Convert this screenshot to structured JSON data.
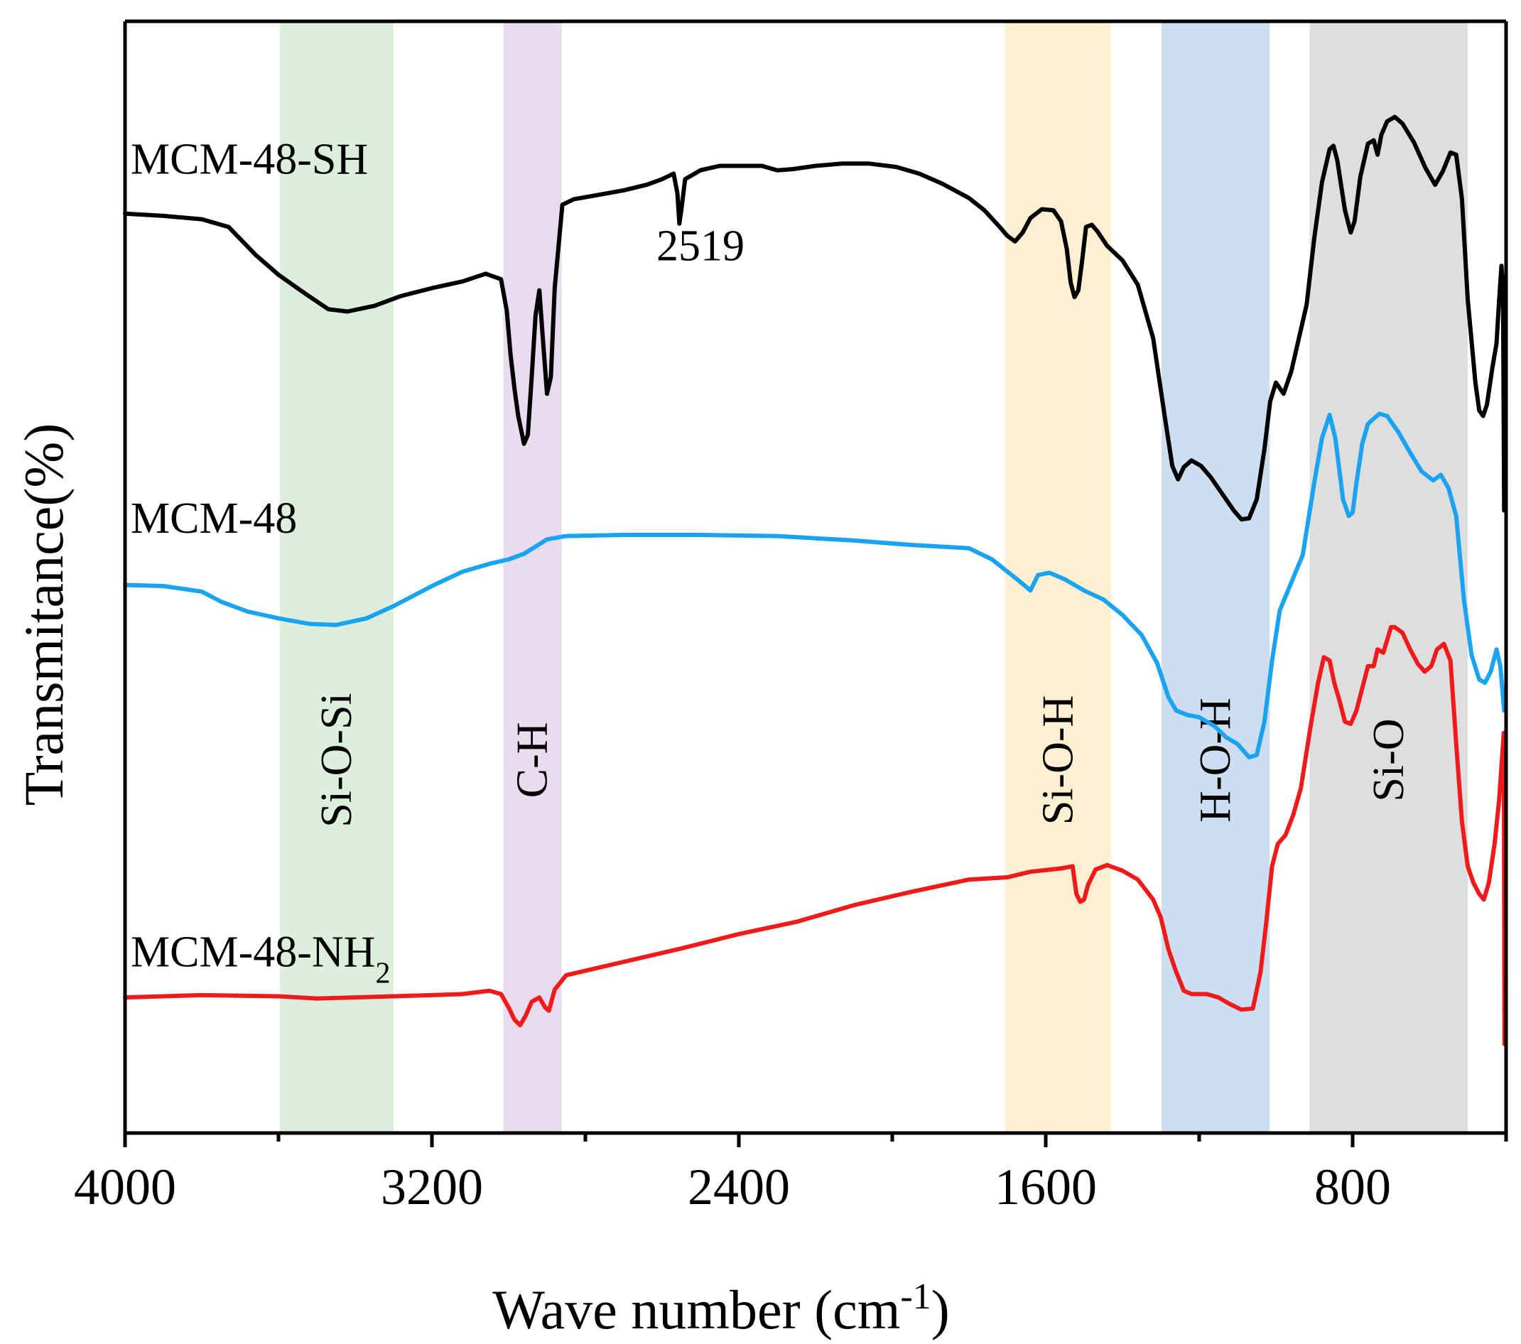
{
  "chart_data": {
    "type": "line",
    "xlabel": "Wave number (cm",
    "xlabel_sup": "-1",
    "xlabel_end": ")",
    "ylabel": "Transmitance(%)",
    "xlim": [
      4000,
      400
    ],
    "x_reversed": true,
    "x_major_ticks": [
      4000,
      3200,
      2400,
      1600,
      800
    ],
    "x_tick_labels": [
      "4000",
      "3200",
      "2400",
      "1600",
      "800"
    ],
    "x_minor_ticks": [
      3600,
      2800,
      2000,
      1200,
      400
    ],
    "ylim": [
      0,
      100
    ],
    "y_ticks_shown": false,
    "grid": false,
    "bands": [
      {
        "label": "Si-O-Si",
        "from": 3596,
        "to": 3300,
        "color": "#dcefdc"
      },
      {
        "label": "C-H",
        "from": 3014,
        "to": 2862,
        "color": "#eadcef"
      },
      {
        "label": "Si-O-H",
        "from": 1706,
        "to": 1430,
        "color": "#fdefd2"
      },
      {
        "label": "H-O-H",
        "from": 1298,
        "to": 1016,
        "color": "#cddef0"
      },
      {
        "label": "Si-O",
        "from": 912,
        "to": 500,
        "color": "#dedede"
      }
    ],
    "annotations": [
      {
        "text": "2519",
        "x": 2500,
        "y": 78.5
      }
    ],
    "series": [
      {
        "name": "MCM-48-SH",
        "label_main": "MCM-48-SH",
        "label_sub": "",
        "color": "#000000",
        "label_x": 4000,
        "label_y": 86.3,
        "points": [
          [
            4000,
            82.7
          ],
          [
            3900,
            82.5
          ],
          [
            3800,
            82.2
          ],
          [
            3730,
            81.5
          ],
          [
            3660,
            79.0
          ],
          [
            3600,
            77.2
          ],
          [
            3530,
            75.5
          ],
          [
            3470,
            74.1
          ],
          [
            3420,
            73.9
          ],
          [
            3350,
            74.4
          ],
          [
            3280,
            75.3
          ],
          [
            3200,
            76.0
          ],
          [
            3120,
            76.6
          ],
          [
            3060,
            77.3
          ],
          [
            3020,
            76.8
          ],
          [
            3005,
            74.0
          ],
          [
            2995,
            70.0
          ],
          [
            2985,
            67.0
          ],
          [
            2975,
            64.5
          ],
          [
            2960,
            62.0
          ],
          [
            2950,
            62.8
          ],
          [
            2940,
            68.0
          ],
          [
            2930,
            73.5
          ],
          [
            2920,
            75.8
          ],
          [
            2912,
            72.0
          ],
          [
            2900,
            66.5
          ],
          [
            2890,
            68.0
          ],
          [
            2880,
            76.0
          ],
          [
            2860,
            83.5
          ],
          [
            2830,
            84.0
          ],
          [
            2780,
            84.3
          ],
          [
            2700,
            84.8
          ],
          [
            2640,
            85.3
          ],
          [
            2600,
            85.8
          ],
          [
            2570,
            86.3
          ],
          [
            2560,
            84.5
          ],
          [
            2555,
            81.8
          ],
          [
            2550,
            83.0
          ],
          [
            2540,
            85.8
          ],
          [
            2500,
            86.6
          ],
          [
            2450,
            87.0
          ],
          [
            2400,
            87.0
          ],
          [
            2340,
            87.0
          ],
          [
            2300,
            86.6
          ],
          [
            2260,
            86.7
          ],
          [
            2200,
            87.0
          ],
          [
            2130,
            87.2
          ],
          [
            2060,
            87.2
          ],
          [
            1990,
            86.9
          ],
          [
            1930,
            86.3
          ],
          [
            1870,
            85.4
          ],
          [
            1800,
            84.1
          ],
          [
            1760,
            83.0
          ],
          [
            1720,
            81.5
          ],
          [
            1700,
            80.7
          ],
          [
            1680,
            80.2
          ],
          [
            1660,
            81.0
          ],
          [
            1640,
            82.3
          ],
          [
            1610,
            83.1
          ],
          [
            1580,
            83.0
          ],
          [
            1560,
            82.0
          ],
          [
            1545,
            79.5
          ],
          [
            1535,
            76.5
          ],
          [
            1525,
            75.2
          ],
          [
            1515,
            75.8
          ],
          [
            1505,
            78.5
          ],
          [
            1495,
            81.5
          ],
          [
            1480,
            81.7
          ],
          [
            1465,
            81.1
          ],
          [
            1440,
            79.8
          ],
          [
            1400,
            78.5
          ],
          [
            1360,
            76.3
          ],
          [
            1320,
            71.5
          ],
          [
            1290,
            64.5
          ],
          [
            1270,
            60.0
          ],
          [
            1255,
            58.8
          ],
          [
            1240,
            59.9
          ],
          [
            1220,
            60.5
          ],
          [
            1195,
            60.0
          ],
          [
            1170,
            59.0
          ],
          [
            1140,
            57.5
          ],
          [
            1110,
            56.0
          ],
          [
            1090,
            55.2
          ],
          [
            1070,
            55.3
          ],
          [
            1050,
            57.0
          ],
          [
            1030,
            61.5
          ],
          [
            1015,
            65.8
          ],
          [
            1000,
            67.5
          ],
          [
            980,
            66.5
          ],
          [
            960,
            68.5
          ],
          [
            940,
            71.5
          ],
          [
            920,
            74.5
          ],
          [
            900,
            80.5
          ],
          [
            880,
            85.5
          ],
          [
            860,
            88.5
          ],
          [
            850,
            88.8
          ],
          [
            840,
            87.5
          ],
          [
            820,
            83.0
          ],
          [
            805,
            81.0
          ],
          [
            795,
            82.0
          ],
          [
            780,
            86.0
          ],
          [
            760,
            89.0
          ],
          [
            745,
            89.3
          ],
          [
            735,
            88.0
          ],
          [
            725,
            89.8
          ],
          [
            710,
            91.0
          ],
          [
            690,
            91.4
          ],
          [
            670,
            90.8
          ],
          [
            640,
            89.1
          ],
          [
            610,
            86.8
          ],
          [
            585,
            85.3
          ],
          [
            565,
            86.5
          ],
          [
            545,
            88.2
          ],
          [
            530,
            88.0
          ],
          [
            515,
            84.0
          ],
          [
            500,
            75.0
          ],
          [
            480,
            67.5
          ],
          [
            470,
            65.0
          ],
          [
            460,
            64.5
          ],
          [
            450,
            65.5
          ],
          [
            435,
            69.0
          ],
          [
            425,
            71.0
          ],
          [
            418,
            75.0
          ],
          [
            412,
            78.0
          ],
          [
            408,
            76.0
          ],
          [
            405,
            56.0
          ]
        ]
      },
      {
        "name": "MCM-48",
        "label_main": "MCM-48",
        "label_sub": "",
        "color": "#1aa3f0",
        "label_x": 4000,
        "label_y": 54.0,
        "points": [
          [
            4000,
            49.3
          ],
          [
            3900,
            49.2
          ],
          [
            3800,
            48.7
          ],
          [
            3750,
            47.8
          ],
          [
            3680,
            46.9
          ],
          [
            3600,
            46.3
          ],
          [
            3520,
            45.8
          ],
          [
            3450,
            45.7
          ],
          [
            3370,
            46.3
          ],
          [
            3300,
            47.4
          ],
          [
            3200,
            49.2
          ],
          [
            3120,
            50.5
          ],
          [
            3050,
            51.2
          ],
          [
            3000,
            51.6
          ],
          [
            2960,
            52.1
          ],
          [
            2900,
            53.4
          ],
          [
            2850,
            53.7
          ],
          [
            2700,
            53.8
          ],
          [
            2500,
            53.8
          ],
          [
            2300,
            53.7
          ],
          [
            2100,
            53.3
          ],
          [
            1950,
            52.9
          ],
          [
            1800,
            52.6
          ],
          [
            1740,
            51.6
          ],
          [
            1700,
            50.5
          ],
          [
            1660,
            49.4
          ],
          [
            1640,
            48.8
          ],
          [
            1620,
            50.2
          ],
          [
            1590,
            50.4
          ],
          [
            1550,
            49.8
          ],
          [
            1500,
            48.8
          ],
          [
            1450,
            48.0
          ],
          [
            1400,
            46.6
          ],
          [
            1350,
            44.8
          ],
          [
            1310,
            42.3
          ],
          [
            1280,
            39.2
          ],
          [
            1260,
            38.0
          ],
          [
            1230,
            37.6
          ],
          [
            1200,
            37.4
          ],
          [
            1160,
            36.6
          ],
          [
            1130,
            35.6
          ],
          [
            1100,
            35.0
          ],
          [
            1070,
            33.8
          ],
          [
            1050,
            34.0
          ],
          [
            1030,
            37.0
          ],
          [
            1010,
            42.5
          ],
          [
            990,
            47.0
          ],
          [
            960,
            49.5
          ],
          [
            930,
            52.0
          ],
          [
            900,
            58.5
          ],
          [
            880,
            62.5
          ],
          [
            860,
            64.6
          ],
          [
            845,
            62.5
          ],
          [
            825,
            57.0
          ],
          [
            810,
            55.5
          ],
          [
            800,
            55.8
          ],
          [
            790,
            58.5
          ],
          [
            775,
            62.0
          ],
          [
            760,
            63.8
          ],
          [
            730,
            64.7
          ],
          [
            710,
            64.5
          ],
          [
            680,
            63.0
          ],
          [
            650,
            61.2
          ],
          [
            620,
            59.5
          ],
          [
            590,
            58.7
          ],
          [
            570,
            59.2
          ],
          [
            550,
            58.0
          ],
          [
            530,
            55.5
          ],
          [
            510,
            48.0
          ],
          [
            490,
            43.0
          ],
          [
            470,
            40.8
          ],
          [
            455,
            40.5
          ],
          [
            440,
            41.5
          ],
          [
            425,
            43.5
          ],
          [
            415,
            42.0
          ],
          [
            410,
            40.0
          ],
          [
            405,
            38.0
          ]
        ]
      },
      {
        "name": "MCM-48-NH2",
        "label_main": "MCM-48-NH",
        "label_sub": "2",
        "color": "#f11a1a",
        "label_x": 4000,
        "label_y": 15.0,
        "points": [
          [
            4000,
            12.2
          ],
          [
            3800,
            12.4
          ],
          [
            3600,
            12.3
          ],
          [
            3500,
            12.1
          ],
          [
            3400,
            12.2
          ],
          [
            3300,
            12.3
          ],
          [
            3200,
            12.4
          ],
          [
            3120,
            12.5
          ],
          [
            3050,
            12.8
          ],
          [
            3020,
            12.5
          ],
          [
            3000,
            11.3
          ],
          [
            2985,
            10.2
          ],
          [
            2970,
            9.7
          ],
          [
            2955,
            10.6
          ],
          [
            2940,
            11.8
          ],
          [
            2920,
            12.2
          ],
          [
            2905,
            11.3
          ],
          [
            2895,
            11.0
          ],
          [
            2880,
            12.9
          ],
          [
            2850,
            14.2
          ],
          [
            2700,
            15.4
          ],
          [
            2550,
            16.6
          ],
          [
            2400,
            17.9
          ],
          [
            2250,
            19.0
          ],
          [
            2100,
            20.5
          ],
          [
            1950,
            21.7
          ],
          [
            1800,
            22.8
          ],
          [
            1700,
            23.0
          ],
          [
            1640,
            23.5
          ],
          [
            1560,
            23.8
          ],
          [
            1530,
            24.0
          ],
          [
            1520,
            21.5
          ],
          [
            1510,
            20.8
          ],
          [
            1500,
            21.0
          ],
          [
            1490,
            22.3
          ],
          [
            1470,
            23.7
          ],
          [
            1440,
            24.1
          ],
          [
            1400,
            23.6
          ],
          [
            1360,
            22.8
          ],
          [
            1320,
            21.0
          ],
          [
            1300,
            19.4
          ],
          [
            1280,
            16.5
          ],
          [
            1260,
            14.5
          ],
          [
            1240,
            12.8
          ],
          [
            1220,
            12.5
          ],
          [
            1180,
            12.5
          ],
          [
            1150,
            12.2
          ],
          [
            1120,
            11.6
          ],
          [
            1090,
            11.1
          ],
          [
            1060,
            11.2
          ],
          [
            1040,
            14.5
          ],
          [
            1025,
            19.0
          ],
          [
            1010,
            24.0
          ],
          [
            995,
            26.0
          ],
          [
            975,
            26.8
          ],
          [
            955,
            28.6
          ],
          [
            935,
            31.0
          ],
          [
            910,
            36.5
          ],
          [
            890,
            40.5
          ],
          [
            875,
            42.8
          ],
          [
            860,
            42.5
          ],
          [
            848,
            40.5
          ],
          [
            835,
            39.0
          ],
          [
            820,
            37.0
          ],
          [
            805,
            36.8
          ],
          [
            790,
            38.0
          ],
          [
            775,
            40.0
          ],
          [
            760,
            42.0
          ],
          [
            745,
            42.0
          ],
          [
            735,
            43.5
          ],
          [
            720,
            43.2
          ],
          [
            700,
            45.5
          ],
          [
            690,
            45.5
          ],
          [
            670,
            45.0
          ],
          [
            650,
            43.5
          ],
          [
            630,
            42.2
          ],
          [
            612,
            41.5
          ],
          [
            595,
            42.0
          ],
          [
            580,
            43.5
          ],
          [
            562,
            44.0
          ],
          [
            545,
            42.5
          ],
          [
            530,
            35.0
          ],
          [
            515,
            28.0
          ],
          [
            500,
            24.0
          ],
          [
            485,
            22.5
          ],
          [
            470,
            21.5
          ],
          [
            458,
            21.0
          ],
          [
            445,
            22.5
          ],
          [
            430,
            26.0
          ],
          [
            418,
            30.0
          ],
          [
            410,
            34.0
          ],
          [
            406,
            36.0
          ],
          [
            404,
            8.0
          ]
        ]
      }
    ]
  }
}
